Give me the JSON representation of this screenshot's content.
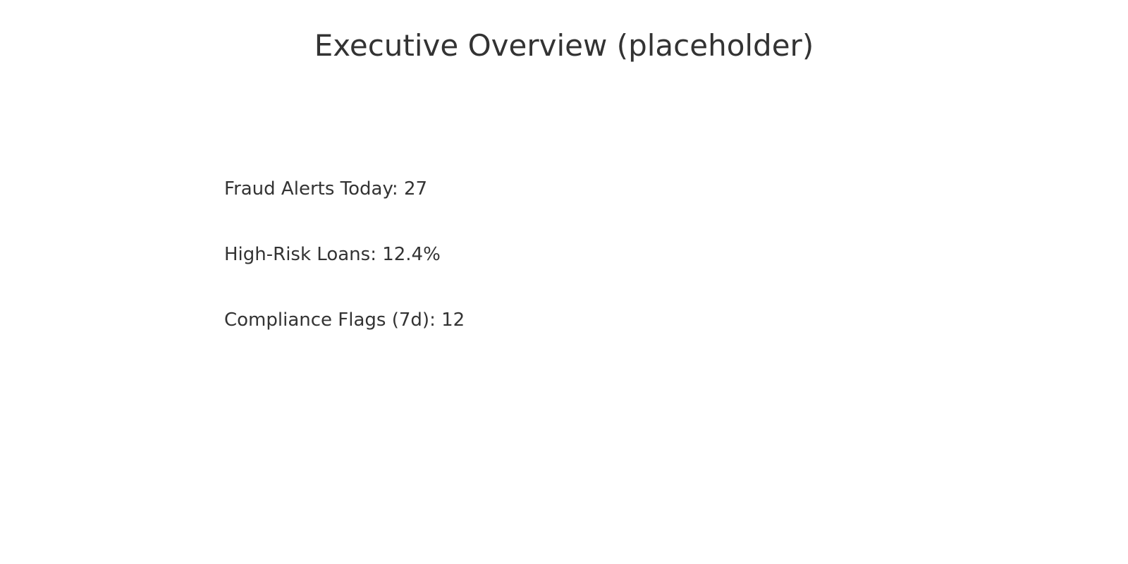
{
  "header": {
    "title": "Executive Overview (placeholder)"
  },
  "metrics": {
    "items": [
      {
        "label": "Fraud Alerts Today: 27"
      },
      {
        "label": "High-Risk Loans: 12.4%"
      },
      {
        "label": "Compliance Flags (7d): 12"
      }
    ]
  },
  "colors": {
    "text": "#333333",
    "background": "#ffffff"
  }
}
